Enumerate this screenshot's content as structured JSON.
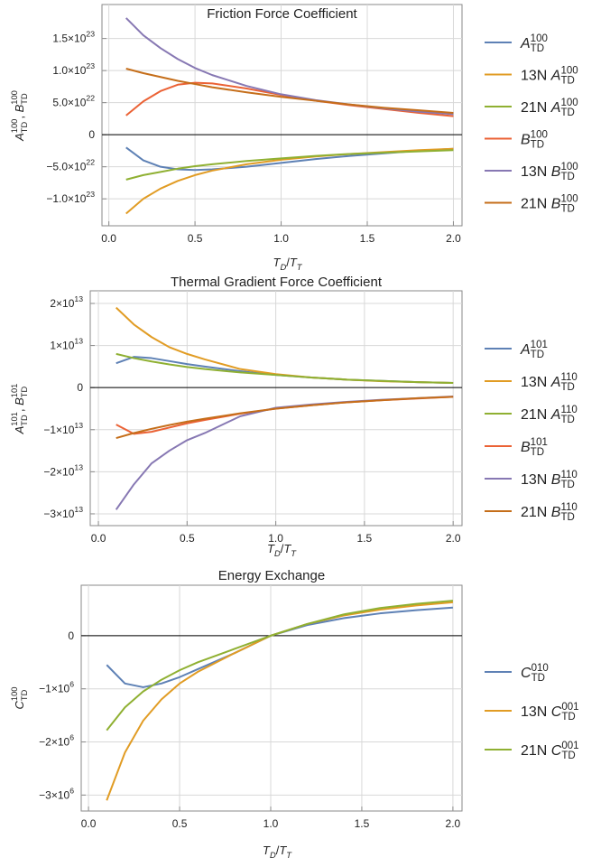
{
  "chart_data": [
    {
      "type": "line",
      "title": "Friction Force Coefficient",
      "xlabel": [
        {
          "text": "T",
          "italic": true
        },
        {
          "text": "D",
          "shift": "sub",
          "italic": true
        },
        {
          "text": "/"
        },
        {
          "text": "T",
          "italic": true
        },
        {
          "text": "T",
          "shift": "sub",
          "italic": true
        }
      ],
      "ylabel": [
        {
          "text": "A",
          "italic": true
        },
        {
          "text": "TD",
          "shift": "sub"
        },
        {
          "text": "100",
          "shift": "sup"
        },
        {
          "text": ", "
        },
        {
          "text": "B",
          "italic": true
        },
        {
          "text": "TD",
          "shift": "sub"
        },
        {
          "text": "100",
          "shift": "sup"
        }
      ],
      "x": [
        0.1,
        0.2,
        0.3,
        0.4,
        0.5,
        0.6,
        0.8,
        1.0,
        1.2,
        1.4,
        1.6,
        1.8,
        2.0
      ],
      "xlim": [
        -0.04,
        2.05
      ],
      "xticks": [
        {
          "value": 0,
          "label": "0.0"
        },
        0.5,
        {
          "value": 1,
          "label": "1.0"
        },
        1.5,
        {
          "value": 2,
          "label": "2.0"
        }
      ],
      "ylim": [
        -1.42e+23,
        2.03e+23
      ],
      "yticks": [
        {
          "value": 1.5e+23,
          "label": "1.5×10",
          "exponent": "23"
        },
        {
          "value": 1e+23,
          "label": "1.0×10",
          "exponent": "23"
        },
        {
          "value": 5e+22,
          "label": "5.0×10",
          "exponent": "22"
        },
        0,
        {
          "value": -5e+22,
          "label": "−5.0×10",
          "exponent": "22"
        },
        {
          "value": -1e+23,
          "label": "−1.0×10",
          "exponent": "23"
        }
      ],
      "grid": true,
      "series": [
        {
          "name": [
            {
              "text": "A",
              "italic": true
            },
            {
              "text": "TD",
              "shift": "sub"
            },
            {
              "text": "100",
              "shift": "sup"
            }
          ],
          "color": "#5e81b5",
          "values": [
            -2e+22,
            -4e+22,
            -5e+22,
            -5.4e+22,
            -5.5e+22,
            -5.4e+22,
            -5e+22,
            -4.4e+22,
            -3.8e+22,
            -3.3e+22,
            -2.9e+22,
            -2.5e+22,
            -2.2e+22
          ]
        },
        {
          "name": [
            {
              "text": "13N "
            },
            {
              "text": "A",
              "italic": true
            },
            {
              "text": "TD",
              "shift": "sub"
            },
            {
              "text": "100",
              "shift": "sup"
            }
          ],
          "color": "#e19c24",
          "values": [
            -1.23e+23,
            -1e+23,
            -8.4e+22,
            -7.2e+22,
            -6.3e+22,
            -5.6e+22,
            -4.6e+22,
            -3.9e+22,
            -3.4e+22,
            -3e+22,
            -2.7e+22,
            -2.4e+22,
            -2.2e+22
          ]
        },
        {
          "name": [
            {
              "text": "21N "
            },
            {
              "text": "A",
              "italic": true
            },
            {
              "text": "TD",
              "shift": "sub"
            },
            {
              "text": "100",
              "shift": "sup"
            }
          ],
          "color": "#8fb032",
          "values": [
            -7e+22,
            -6.3e+22,
            -5.8e+22,
            -5.3e+22,
            -4.9e+22,
            -4.6e+22,
            -4.1e+22,
            -3.7e+22,
            -3.3e+22,
            -3e+22,
            -2.8e+22,
            -2.6e+22,
            -2.4e+22
          ]
        },
        {
          "name": [
            {
              "text": "B",
              "italic": true
            },
            {
              "text": "TD",
              "shift": "sub"
            },
            {
              "text": "100",
              "shift": "sup"
            }
          ],
          "color": "#eb6235",
          "values": [
            3e+22,
            5.2e+22,
            6.8e+22,
            7.8e+22,
            8.1e+22,
            8e+22,
            7.2e+22,
            6.2e+22,
            5.3e+22,
            4.6e+22,
            4e+22,
            3.4e+22,
            2.9e+22
          ]
        },
        {
          "name": [
            {
              "text": "13N "
            },
            {
              "text": "B",
              "italic": true
            },
            {
              "text": "TD",
              "shift": "sub"
            },
            {
              "text": "100",
              "shift": "sup"
            }
          ],
          "color": "#8778b3",
          "values": [
            1.82e+23,
            1.55e+23,
            1.35e+23,
            1.18e+23,
            1.04e+23,
            9.3e+22,
            7.6e+22,
            6.3e+22,
            5.4e+22,
            4.7e+22,
            4.1e+22,
            3.6e+22,
            3.2e+22
          ]
        },
        {
          "name": [
            {
              "text": "21N "
            },
            {
              "text": "B",
              "italic": true
            },
            {
              "text": "TD",
              "shift": "sub"
            },
            {
              "text": "100",
              "shift": "sup"
            }
          ],
          "color": "#c56e1a",
          "values": [
            1.03e+23,
            9.6e+22,
            9e+22,
            8.4e+22,
            7.9e+22,
            7.4e+22,
            6.6e+22,
            5.9e+22,
            5.3e+22,
            4.7e+22,
            4.2e+22,
            3.8e+22,
            3.4e+22
          ]
        }
      ]
    },
    {
      "type": "line",
      "title": "Thermal Gradient Force Coefficient",
      "xlabel": [
        {
          "text": "T",
          "italic": true
        },
        {
          "text": "D",
          "shift": "sub",
          "italic": true
        },
        {
          "text": "/"
        },
        {
          "text": "T",
          "italic": true
        },
        {
          "text": "T",
          "shift": "sub",
          "italic": true
        }
      ],
      "ylabel": [
        {
          "text": "A",
          "italic": true
        },
        {
          "text": "TD",
          "shift": "sub"
        },
        {
          "text": "101",
          "shift": "sup"
        },
        {
          "text": ", "
        },
        {
          "text": "B",
          "italic": true
        },
        {
          "text": "TD",
          "shift": "sub"
        },
        {
          "text": "101",
          "shift": "sup"
        }
      ],
      "x": [
        0.1,
        0.2,
        0.3,
        0.4,
        0.5,
        0.6,
        0.8,
        1.0,
        1.2,
        1.4,
        1.6,
        1.8,
        2.0
      ],
      "xlim": [
        -0.046,
        2.05
      ],
      "xticks": [
        {
          "value": 0,
          "label": "0.0"
        },
        0.5,
        {
          "value": 1,
          "label": "1.0"
        },
        1.5,
        {
          "value": 2,
          "label": "2.0"
        }
      ],
      "ylim": [
        -32800000000000.0,
        23000000000000.0
      ],
      "yticks": [
        {
          "value": 20000000000000.0,
          "label": "2×10",
          "exponent": "13"
        },
        {
          "value": 10000000000000.0,
          "label": "1×10",
          "exponent": "13"
        },
        0,
        {
          "value": -10000000000000.0,
          "label": "−1×10",
          "exponent": "13"
        },
        {
          "value": -20000000000000.0,
          "label": "−2×10",
          "exponent": "13"
        },
        {
          "value": -30000000000000.0,
          "label": "−3×10",
          "exponent": "13"
        }
      ],
      "grid": true,
      "series": [
        {
          "name": [
            {
              "text": "A",
              "italic": true
            },
            {
              "text": "TD",
              "shift": "sub"
            },
            {
              "text": "101",
              "shift": "sup"
            }
          ],
          "color": "#5e81b5",
          "values": [
            5800000000000.0,
            7300000000000.0,
            7000000000000.0,
            6300000000000.0,
            5600000000000.0,
            5000000000000.0,
            3900000000000.0,
            3000000000000.0,
            2400000000000.0,
            1900000000000.0,
            1600000000000.0,
            1300000000000.0,
            1100000000000.0
          ]
        },
        {
          "name": [
            {
              "text": "13N "
            },
            {
              "text": "A",
              "italic": true
            },
            {
              "text": "TD",
              "shift": "sub"
            },
            {
              "text": "110",
              "shift": "sup"
            }
          ],
          "color": "#e19c24",
          "values": [
            19000000000000.0,
            15000000000000.0,
            12000000000000.0,
            9600000000000.0,
            8000000000000.0,
            6700000000000.0,
            4400000000000.0,
            3200000000000.0,
            2400000000000.0,
            1900000000000.0,
            1500000000000.0,
            1300000000000.0,
            1100000000000.0
          ]
        },
        {
          "name": [
            {
              "text": "21N "
            },
            {
              "text": "A",
              "italic": true
            },
            {
              "text": "TD",
              "shift": "sub"
            },
            {
              "text": "110",
              "shift": "sup"
            }
          ],
          "color": "#8fb032",
          "values": [
            8000000000000.0,
            7000000000000.0,
            6200000000000.0,
            5500000000000.0,
            4900000000000.0,
            4400000000000.0,
            3600000000000.0,
            3000000000000.0,
            2400000000000.0,
            1900000000000.0,
            1600000000000.0,
            1300000000000.0,
            1100000000000.0
          ]
        },
        {
          "name": [
            {
              "text": "B",
              "italic": true
            },
            {
              "text": "TD",
              "shift": "sub"
            },
            {
              "text": "101",
              "shift": "sup"
            }
          ],
          "color": "#eb6235",
          "values": [
            -8800000000000.0,
            -11000000000000.0,
            -10500000000000.0,
            -9500000000000.0,
            -8500000000000.0,
            -7700000000000.0,
            -6200000000000.0,
            -5000000000000.0,
            -4200000000000.0,
            -3500000000000.0,
            -3000000000000.0,
            -2600000000000.0,
            -2200000000000.0
          ]
        },
        {
          "name": [
            {
              "text": "13N "
            },
            {
              "text": "B",
              "italic": true
            },
            {
              "text": "TD",
              "shift": "sub"
            },
            {
              "text": "110",
              "shift": "sup"
            }
          ],
          "color": "#8778b3",
          "values": [
            -29000000000000.0,
            -23000000000000.0,
            -18000000000000.0,
            -15000000000000.0,
            -12500000000000.0,
            -10800000000000.0,
            -6800000000000.0,
            -4800000000000.0,
            -4000000000000.0,
            -3400000000000.0,
            -2900000000000.0,
            -2500000000000.0,
            -2100000000000.0
          ]
        },
        {
          "name": [
            {
              "text": "21N "
            },
            {
              "text": "B",
              "italic": true
            },
            {
              "text": "TD",
              "shift": "sub"
            },
            {
              "text": "110",
              "shift": "sup"
            }
          ],
          "color": "#c56e1a",
          "values": [
            -12000000000000.0,
            -10800000000000.0,
            -9800000000000.0,
            -8900000000000.0,
            -8100000000000.0,
            -7400000000000.0,
            -6100000000000.0,
            -5000000000000.0,
            -4200000000000.0,
            -3500000000000.0,
            -3000000000000.0,
            -2500000000000.0,
            -2200000000000.0
          ]
        }
      ]
    },
    {
      "type": "line",
      "title": "Energy Exchange",
      "xlabel": [
        {
          "text": "T",
          "italic": true
        },
        {
          "text": "D",
          "shift": "sub",
          "italic": true
        },
        {
          "text": "/"
        },
        {
          "text": "T",
          "italic": true
        },
        {
          "text": "T",
          "shift": "sub",
          "italic": true
        }
      ],
      "ylabel": [
        {
          "text": "C",
          "italic": true
        },
        {
          "text": "TD",
          "shift": "sub"
        },
        {
          "text": "100",
          "shift": "sup"
        }
      ],
      "x": [
        0.1,
        0.2,
        0.3,
        0.4,
        0.5,
        0.6,
        0.8,
        1.0,
        1.2,
        1.4,
        1.6,
        1.8,
        2.0
      ],
      "xlim": [
        -0.04,
        2.05
      ],
      "xticks": [
        {
          "value": 0,
          "label": "0.0"
        },
        0.5,
        {
          "value": 1,
          "label": "1.0"
        },
        1.5,
        {
          "value": 2,
          "label": "2.0"
        }
      ],
      "ylim": [
        -3300000.0,
        950000.0
      ],
      "yticks": [
        0,
        {
          "value": -1000000.0,
          "label": "−1×10",
          "exponent": "6"
        },
        {
          "value": -2000000.0,
          "label": "−2×10",
          "exponent": "6"
        },
        {
          "value": -3000000.0,
          "label": "−3×10",
          "exponent": "6"
        }
      ],
      "grid": true,
      "series": [
        {
          "name": [
            {
              "text": "C",
              "italic": true
            },
            {
              "text": "TD",
              "shift": "sub"
            },
            {
              "text": "010",
              "shift": "sup"
            }
          ],
          "color": "#5e81b5",
          "values": [
            -550000.0,
            -900000.0,
            -970000.0,
            -900000.0,
            -780000.0,
            -630000.0,
            -330000.0,
            0,
            200000.0,
            330000.0,
            420000.0,
            480000.0,
            530000.0
          ]
        },
        {
          "name": [
            {
              "text": "13N "
            },
            {
              "text": "C",
              "italic": true
            },
            {
              "text": "TD",
              "shift": "sub"
            },
            {
              "text": "001",
              "shift": "sup"
            }
          ],
          "color": "#e19c24",
          "values": [
            -3100000.0,
            -2200000.0,
            -1600000.0,
            -1200000.0,
            -900000.0,
            -680000.0,
            -330000.0,
            0,
            220000.0,
            380000.0,
            490000.0,
            570000.0,
            630000.0
          ]
        },
        {
          "name": [
            {
              "text": "21N "
            },
            {
              "text": "C",
              "italic": true
            },
            {
              "text": "TD",
              "shift": "sub"
            },
            {
              "text": "001",
              "shift": "sup"
            }
          ],
          "color": "#8fb032",
          "values": [
            -1780000.0,
            -1350000.0,
            -1050000.0,
            -830000.0,
            -650000.0,
            -500000.0,
            -250000.0,
            0,
            220000.0,
            400000.0,
            520000.0,
            600000.0,
            660000.0
          ]
        }
      ]
    }
  ]
}
